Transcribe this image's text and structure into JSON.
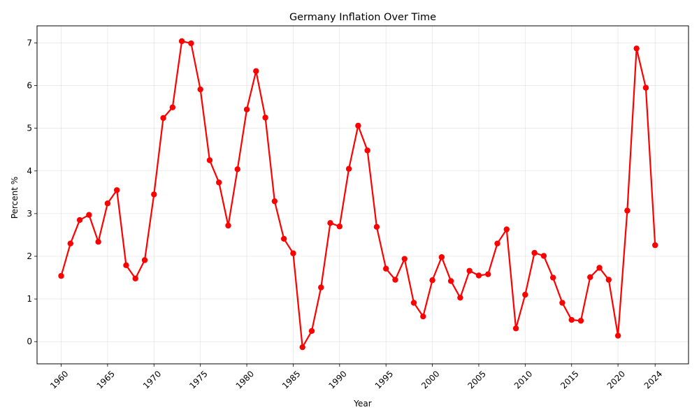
{
  "chart_data": {
    "type": "line",
    "title": "Germany Inflation Over Time",
    "xlabel": "Year",
    "ylabel": "Percent %",
    "xlim": [
      1957.4,
      2027.6
    ],
    "ylim": [
      -0.52,
      7.4
    ],
    "x_ticks": [
      1960,
      1965,
      1970,
      1975,
      1980,
      1985,
      1990,
      1995,
      2000,
      2005,
      2010,
      2015,
      2020,
      2024
    ],
    "x_tick_labels": [
      "1960",
      "1965",
      "1970",
      "1975",
      "1980",
      "1985",
      "1990",
      "1995",
      "2000",
      "2005",
      "2010",
      "2015",
      "2020",
      "2024"
    ],
    "y_ticks": [
      0,
      1,
      2,
      3,
      4,
      5,
      6,
      7
    ],
    "y_tick_labels": [
      "0",
      "1",
      "2",
      "3",
      "4",
      "5",
      "6",
      "7"
    ],
    "grid": true,
    "series": [
      {
        "color": "#ff0000",
        "marker": "circle",
        "x": [
          1960,
          1961,
          1962,
          1963,
          1964,
          1965,
          1966,
          1967,
          1968,
          1969,
          1970,
          1971,
          1972,
          1973,
          1974,
          1975,
          1976,
          1977,
          1978,
          1979,
          1980,
          1981,
          1982,
          1983,
          1984,
          1985,
          1986,
          1987,
          1988,
          1989,
          1990,
          1991,
          1992,
          1993,
          1994,
          1995,
          1996,
          1997,
          1998,
          1999,
          2000,
          2001,
          2002,
          2003,
          2004,
          2005,
          2006,
          2007,
          2008,
          2009,
          2010,
          2011,
          2012,
          2013,
          2014,
          2015,
          2016,
          2017,
          2018,
          2019,
          2020,
          2021,
          2022,
          2023,
          2024
        ],
        "y": [
          1.54,
          2.3,
          2.85,
          2.97,
          2.34,
          3.24,
          3.55,
          1.79,
          1.48,
          1.91,
          3.45,
          5.24,
          5.49,
          7.04,
          6.99,
          5.91,
          4.25,
          3.73,
          2.72,
          4.04,
          5.44,
          6.34,
          5.25,
          3.29,
          2.41,
          2.07,
          -0.13,
          0.25,
          1.27,
          2.78,
          2.7,
          4.05,
          5.06,
          4.48,
          2.69,
          1.71,
          1.45,
          1.94,
          0.91,
          0.59,
          1.44,
          1.98,
          1.42,
          1.03,
          1.66,
          1.55,
          1.58,
          2.3,
          2.63,
          0.31,
          1.1,
          2.08,
          2.01,
          1.5,
          0.91,
          0.51,
          0.49,
          1.51,
          1.73,
          1.45,
          0.14,
          3.07,
          6.87,
          5.95,
          2.26
        ]
      }
    ]
  }
}
